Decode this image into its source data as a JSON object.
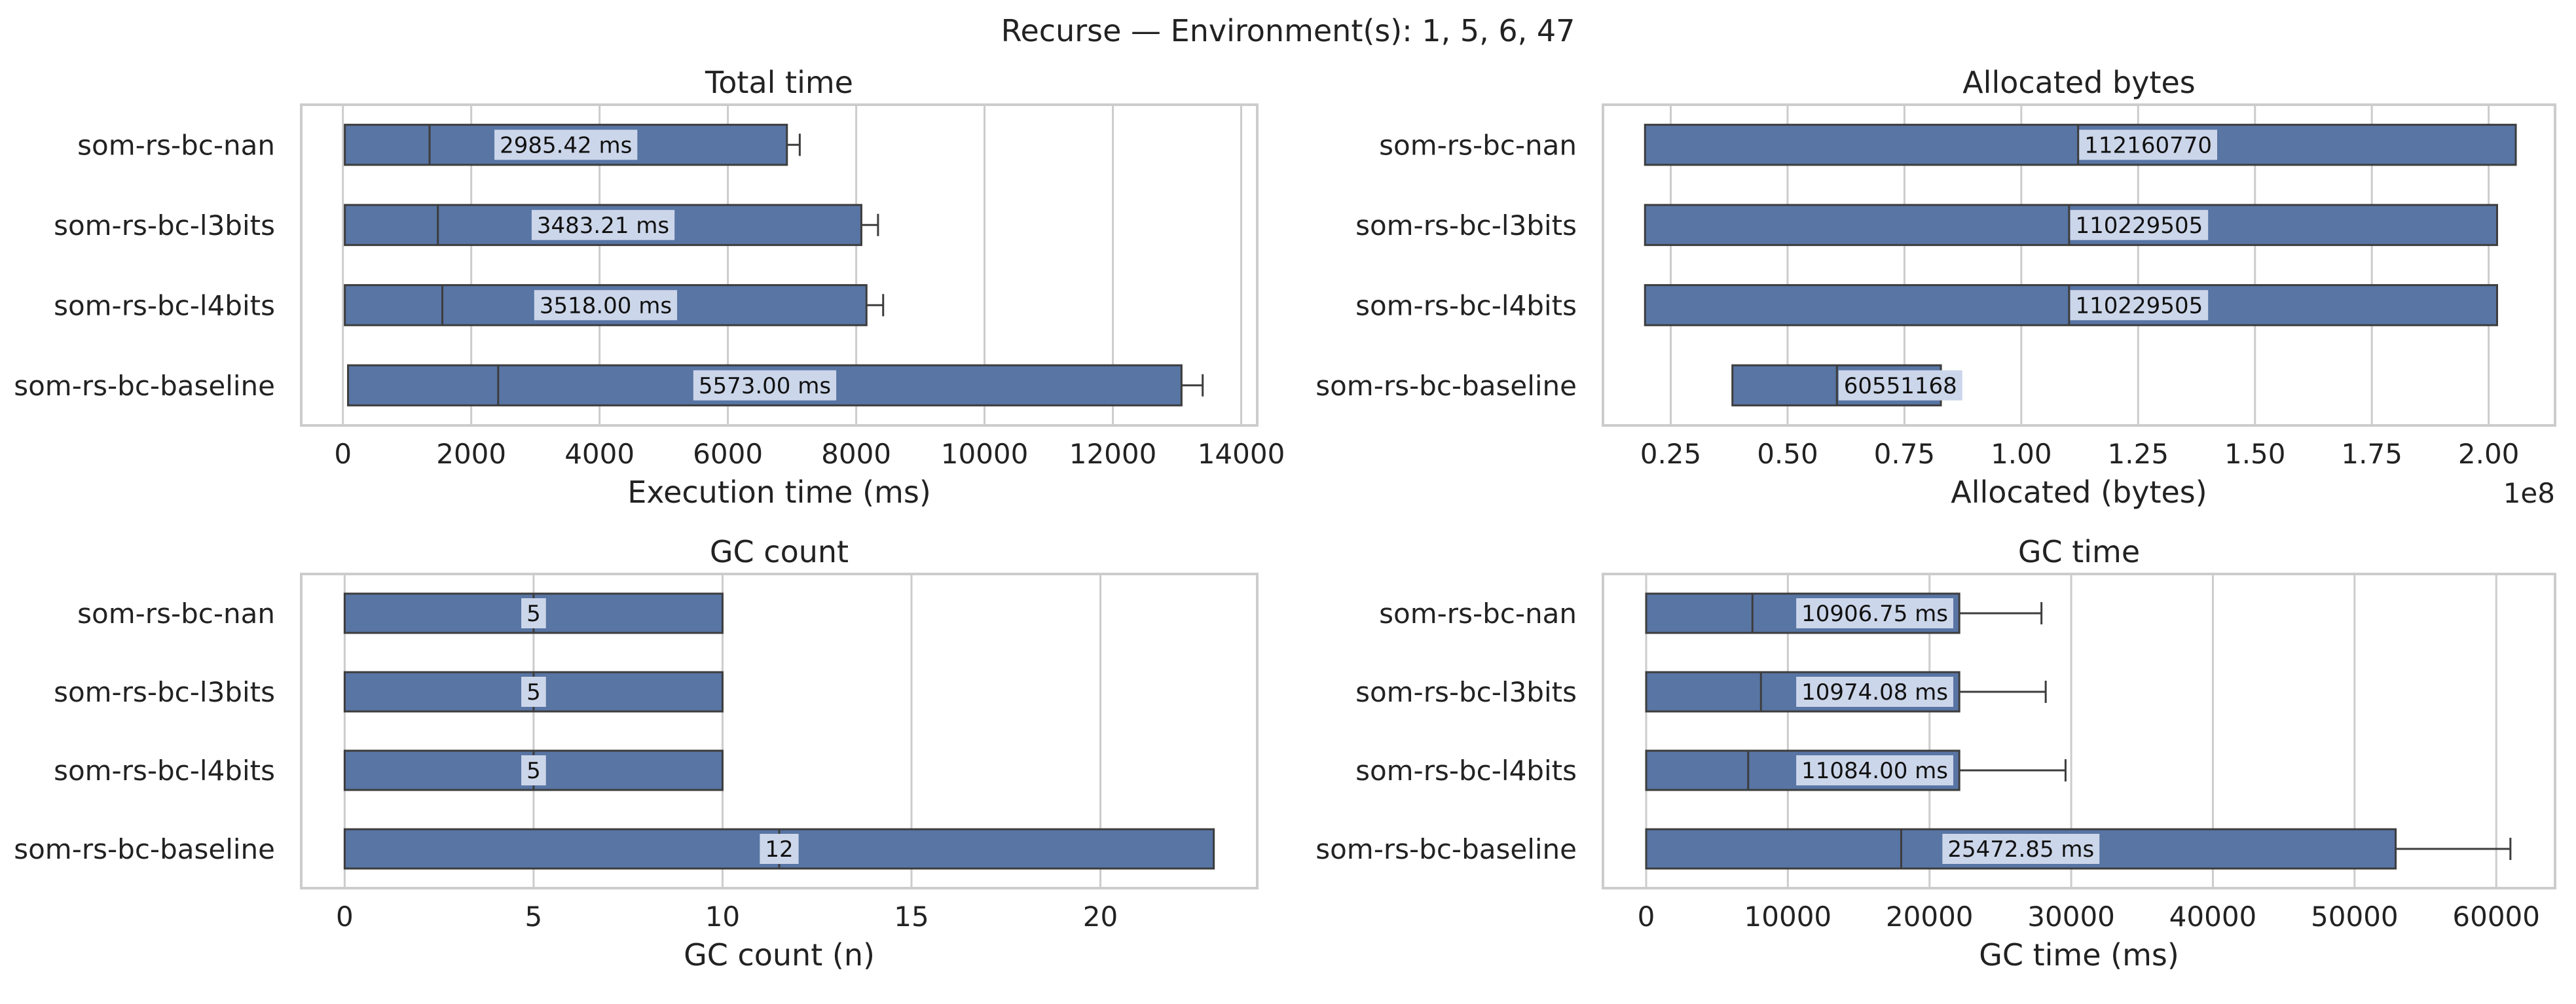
{
  "figure_title": "Recurse — Environment(s): 1, 5, 6, 47",
  "colors": {
    "bar": "#5875a4",
    "bar_edge": "#3d3d3d",
    "grid": "#cccccc",
    "frame": "#cccccc",
    "label_bg": "#ccd6ea"
  },
  "chart_data": [
    {
      "type": "bar",
      "orientation": "horizontal",
      "style": "box",
      "title": "Total time",
      "xlabel": "Execution time (ms)",
      "ylabel": "",
      "xlim": [
        -650,
        14250
      ],
      "xticks": [
        0,
        2000,
        4000,
        6000,
        8000,
        10000,
        12000,
        14000
      ],
      "xtick_labels": [
        "0",
        "2000",
        "4000",
        "6000",
        "8000",
        "10000",
        "12000",
        "14000"
      ],
      "offset_text": "",
      "grid": true,
      "categories": [
        "som-rs-bc-nan",
        "som-rs-bc-l3bits",
        "som-rs-bc-l4bits",
        "som-rs-bc-baseline"
      ],
      "boxes": [
        {
          "start": 30,
          "median": 1350,
          "end": 6920,
          "whisker_max": 7120,
          "label": "2985.42 ms"
        },
        {
          "start": 30,
          "median": 1480,
          "end": 8080,
          "whisker_max": 8340,
          "label": "3483.21 ms"
        },
        {
          "start": 30,
          "median": 1550,
          "end": 8160,
          "whisker_max": 8420,
          "label": "3518.00 ms"
        },
        {
          "start": 80,
          "median": 2420,
          "end": 13070,
          "whisker_max": 13400,
          "label": "5573.00 ms"
        }
      ]
    },
    {
      "type": "bar",
      "orientation": "horizontal",
      "style": "box",
      "title": "Allocated bytes",
      "xlabel": "Allocated (bytes)",
      "ylabel": "",
      "xlim": [
        0.105,
        2.142
      ],
      "xticks": [
        0.25,
        0.5,
        0.75,
        1.0,
        1.25,
        1.5,
        1.75,
        2.0
      ],
      "xtick_labels": [
        "0.25",
        "0.50",
        "0.75",
        "1.00",
        "1.25",
        "1.50",
        "1.75",
        "2.00"
      ],
      "offset_text": "1e8",
      "grid": true,
      "categories": [
        "som-rs-bc-nan",
        "som-rs-bc-l3bits",
        "som-rs-bc-l4bits",
        "som-rs-bc-baseline"
      ],
      "boxes": [
        {
          "start": 0.195,
          "median": 1.1216077,
          "end": 2.058,
          "whisker_max": null,
          "label": "112160770"
        },
        {
          "start": 0.195,
          "median": 1.10229505,
          "end": 2.018,
          "whisker_max": null,
          "label": "110229505"
        },
        {
          "start": 0.195,
          "median": 1.10229505,
          "end": 2.018,
          "whisker_max": null,
          "label": "110229505"
        },
        {
          "start": 0.382,
          "median": 0.60551168,
          "end": 0.828,
          "whisker_max": null,
          "label": "60551168"
        }
      ]
    },
    {
      "type": "bar",
      "orientation": "horizontal",
      "style": "box",
      "title": "GC count",
      "xlabel": "GC count (n)",
      "ylabel": "",
      "xlim": [
        -1.15,
        24.15
      ],
      "xticks": [
        0,
        5,
        10,
        15,
        20
      ],
      "xtick_labels": [
        "0",
        "5",
        "10",
        "15",
        "20"
      ],
      "offset_text": "",
      "grid": true,
      "categories": [
        "som-rs-bc-nan",
        "som-rs-bc-l3bits",
        "som-rs-bc-l4bits",
        "som-rs-bc-baseline"
      ],
      "boxes": [
        {
          "start": 0,
          "median": 5,
          "end": 10,
          "whisker_max": null,
          "label": "5"
        },
        {
          "start": 0,
          "median": 5,
          "end": 10,
          "whisker_max": null,
          "label": "5"
        },
        {
          "start": 0,
          "median": 5,
          "end": 10,
          "whisker_max": null,
          "label": "5"
        },
        {
          "start": 0,
          "median": 11.5,
          "end": 23,
          "whisker_max": null,
          "label": "12"
        }
      ]
    },
    {
      "type": "bar",
      "orientation": "horizontal",
      "style": "box",
      "title": "GC time",
      "xlabel": "GC time (ms)",
      "ylabel": "",
      "xlim": [
        -3050,
        64150
      ],
      "xticks": [
        0,
        10000,
        20000,
        30000,
        40000,
        50000,
        60000
      ],
      "xtick_labels": [
        "0",
        "10000",
        "20000",
        "30000",
        "40000",
        "50000",
        "60000"
      ],
      "offset_text": "",
      "grid": true,
      "categories": [
        "som-rs-bc-nan",
        "som-rs-bc-l3bits",
        "som-rs-bc-l4bits",
        "som-rs-bc-baseline"
      ],
      "boxes": [
        {
          "start": 0,
          "median": 7500,
          "end": 22100,
          "whisker_max": 27900,
          "label": "10906.75 ms"
        },
        {
          "start": 0,
          "median": 8100,
          "end": 22100,
          "whisker_max": 28200,
          "label": "10974.08 ms"
        },
        {
          "start": 0,
          "median": 7200,
          "end": 22100,
          "whisker_max": 29600,
          "label": "11084.00 ms"
        },
        {
          "start": 0,
          "median": 18000,
          "end": 52900,
          "whisker_max": 61000,
          "label": "25472.85 ms"
        }
      ]
    }
  ]
}
